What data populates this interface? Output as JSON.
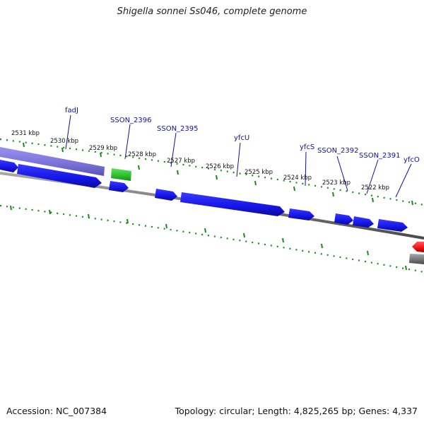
{
  "title": "Shigella sonnei Ss046, complete genome",
  "accession": "Accession: NC_007384",
  "summary": "Topology: circular; Length: 4,825,265 bp; Genes: 4,337",
  "scale_labels": [
    "2531 kbp",
    "2530 kbp",
    "2529 kbp",
    "2528 kbp",
    "2527 kbp",
    "2526 kbp",
    "2525 kbp",
    "2524 kbp",
    "2523 kbp",
    "2522 kbp"
  ],
  "gene_labels": [
    "fadJ",
    "SSON_2396",
    "SSON_2395",
    "yfcU",
    "yfcS",
    "SSON_2392",
    "SSON_2391",
    "yfcO"
  ],
  "colors": {
    "cds": "#1515e6",
    "cds_dark": "#0a0a9a",
    "gene_purple": "#7a70d8",
    "gene_green": "#2bbf2b",
    "rna_red": "#ee1111",
    "backbone": "#7a7a7a",
    "tick_green": "#1a8a1a",
    "label_blue": "#1010a0"
  }
}
